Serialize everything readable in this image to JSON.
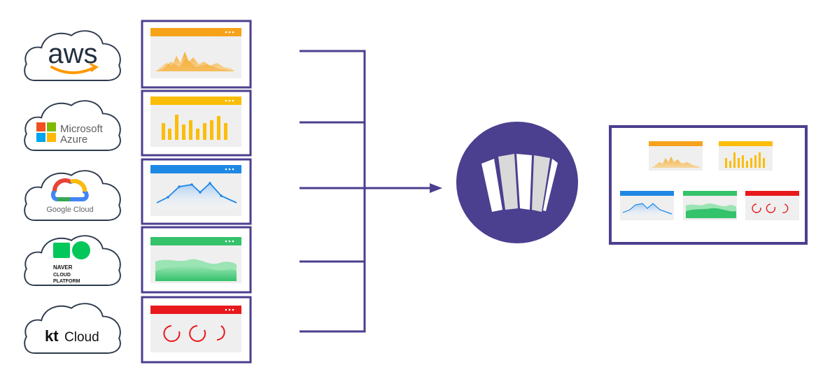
{
  "clouds": [
    {
      "id": "aws",
      "label": "aws",
      "color": "#232f3e",
      "accent": "#ff9900"
    },
    {
      "id": "azure",
      "label_line1": "Microsoft",
      "label_line2": "Azure",
      "color": "#5e5e5e"
    },
    {
      "id": "gcp",
      "label": "Google Cloud",
      "color": "#5f6368"
    },
    {
      "id": "naver",
      "label_line1": "NAVER",
      "label_line2": "CLOUD",
      "label_line3": "PLATFORM",
      "color": "#111111"
    },
    {
      "id": "kt",
      "label_bold": "kt",
      "label": "Cloud",
      "color": "#111111"
    }
  ],
  "panel_colors": {
    "orange": "#f7a21b",
    "yellow": "#fbbd08",
    "blue": "#1e88e5",
    "green": "#34c26a",
    "red": "#e8191d"
  },
  "icons": [
    "cloud-icon",
    "microsoft-logo-icon",
    "google-cloud-logo-icon",
    "naver-logo-icon",
    "kt-logo-icon",
    "aggregator-hub-icon",
    "arrow-right-icon"
  ],
  "colors": {
    "frame": "#4b3f8f",
    "connector": "#4b3f8f",
    "hub": "#4b3f8f",
    "cloud_outline": "#2e3b4e"
  }
}
